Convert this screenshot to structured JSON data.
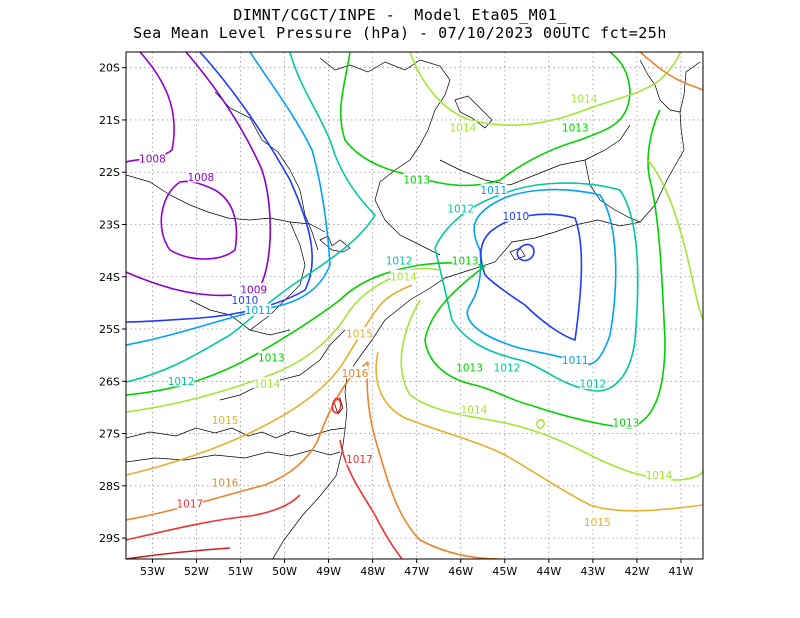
{
  "title": {
    "line1": "DIMNT/CGCT/INPE -  Model Eta05_M01_",
    "line2": "Sea Mean Level Pressure (hPa) - 07/10/2023 00UTC fct=25h"
  },
  "colors": {
    "1008": "#9400d3",
    "1009": "#8a00c8",
    "1010": "#1e3cff",
    "1011": "#00a0ff",
    "1012": "#00c8a0",
    "1013": "#00d000",
    "1014": "#a0e632",
    "1015": "#e6af2d",
    "1016": "#f08228",
    "1017": "#f03232",
    "1018": "#c81e1e"
  },
  "map": {
    "lon_range": [
      -53.6,
      -40.5
    ],
    "lat_range": [
      -29.4,
      -19.7
    ],
    "lon_ticks": [
      "53W",
      "52W",
      "51W",
      "50W",
      "49W",
      "48W",
      "47W",
      "46W",
      "45W",
      "44W",
      "43W",
      "42W",
      "41W"
    ],
    "lat_ticks": [
      "20S",
      "21S",
      "22S",
      "23S",
      "24S",
      "25S",
      "26S",
      "27S",
      "28S",
      "29S"
    ]
  },
  "contour_labels": [
    {
      "text": "1008",
      "level": "1008",
      "lon": -53.0,
      "lat": -21.75
    },
    {
      "text": "1008",
      "level": "1008",
      "lon": -51.9,
      "lat": -22.1
    },
    {
      "text": "1009",
      "level": "1009",
      "lon": -50.7,
      "lat": -24.25
    },
    {
      "text": "1010",
      "level": "1010",
      "lon": -50.9,
      "lat": -24.45
    },
    {
      "text": "1011",
      "level": "1011",
      "lon": -50.6,
      "lat": -24.65
    },
    {
      "text": "1012",
      "level": "1012",
      "lon": -47.4,
      "lat": -23.7
    },
    {
      "text": "1013",
      "level": "1013",
      "lon": -47.0,
      "lat": -22.15
    },
    {
      "text": "1014",
      "level": "1014",
      "lon": -47.3,
      "lat": -24.0
    },
    {
      "text": "1013",
      "level": "1013",
      "lon": -45.9,
      "lat": -23.7
    },
    {
      "text": "1012",
      "level": "1012",
      "lon": -46.0,
      "lat": -22.7
    },
    {
      "text": "1011",
      "level": "1011",
      "lon": -45.25,
      "lat": -22.35
    },
    {
      "text": "1010",
      "level": "1010",
      "lon": -44.75,
      "lat": -22.85
    },
    {
      "text": "1014",
      "level": "1014",
      "lon": -45.95,
      "lat": -21.15
    },
    {
      "text": "1014",
      "level": "1014",
      "lon": -43.2,
      "lat": -20.6
    },
    {
      "text": "1013",
      "level": "1013",
      "lon": -43.4,
      "lat": -21.15
    },
    {
      "text": "1013",
      "level": "1013",
      "lon": -50.3,
      "lat": -25.55
    },
    {
      "text": "1012",
      "level": "1012",
      "lon": -52.35,
      "lat": -26.0
    },
    {
      "text": "1014",
      "level": "1014",
      "lon": -50.4,
      "lat": -26.05
    },
    {
      "text": "1015",
      "level": "1015",
      "lon": -48.3,
      "lat": -25.1
    },
    {
      "text": "1016",
      "level": "1016",
      "lon": -48.4,
      "lat": -25.85
    },
    {
      "text": "1015",
      "level": "1015",
      "lon": -51.35,
      "lat": -26.75
    },
    {
      "text": "1016",
      "level": "1016",
      "lon": -51.35,
      "lat": -27.95
    },
    {
      "text": "1017",
      "level": "1017",
      "lon": -48.3,
      "lat": -27.5
    },
    {
      "text": "1017",
      "level": "1017",
      "lon": -52.15,
      "lat": -28.35
    },
    {
      "text": "1013",
      "level": "1013",
      "lon": -45.8,
      "lat": -25.75
    },
    {
      "text": "1012",
      "level": "1012",
      "lon": -44.95,
      "lat": -25.75
    },
    {
      "text": "1011",
      "level": "1011",
      "lon": -43.4,
      "lat": -25.6
    },
    {
      "text": "1012",
      "level": "1012",
      "lon": -43.0,
      "lat": -26.05
    },
    {
      "text": "1013",
      "level": "1013",
      "lon": -42.25,
      "lat": -26.8
    },
    {
      "text": "1014",
      "level": "1014",
      "lon": -45.7,
      "lat": -26.55
    },
    {
      "text": "1014",
      "level": "1014",
      "lon": -41.5,
      "lat": -27.8
    },
    {
      "text": "1015",
      "level": "1015",
      "lon": -42.9,
      "lat": -28.7
    }
  ]
}
